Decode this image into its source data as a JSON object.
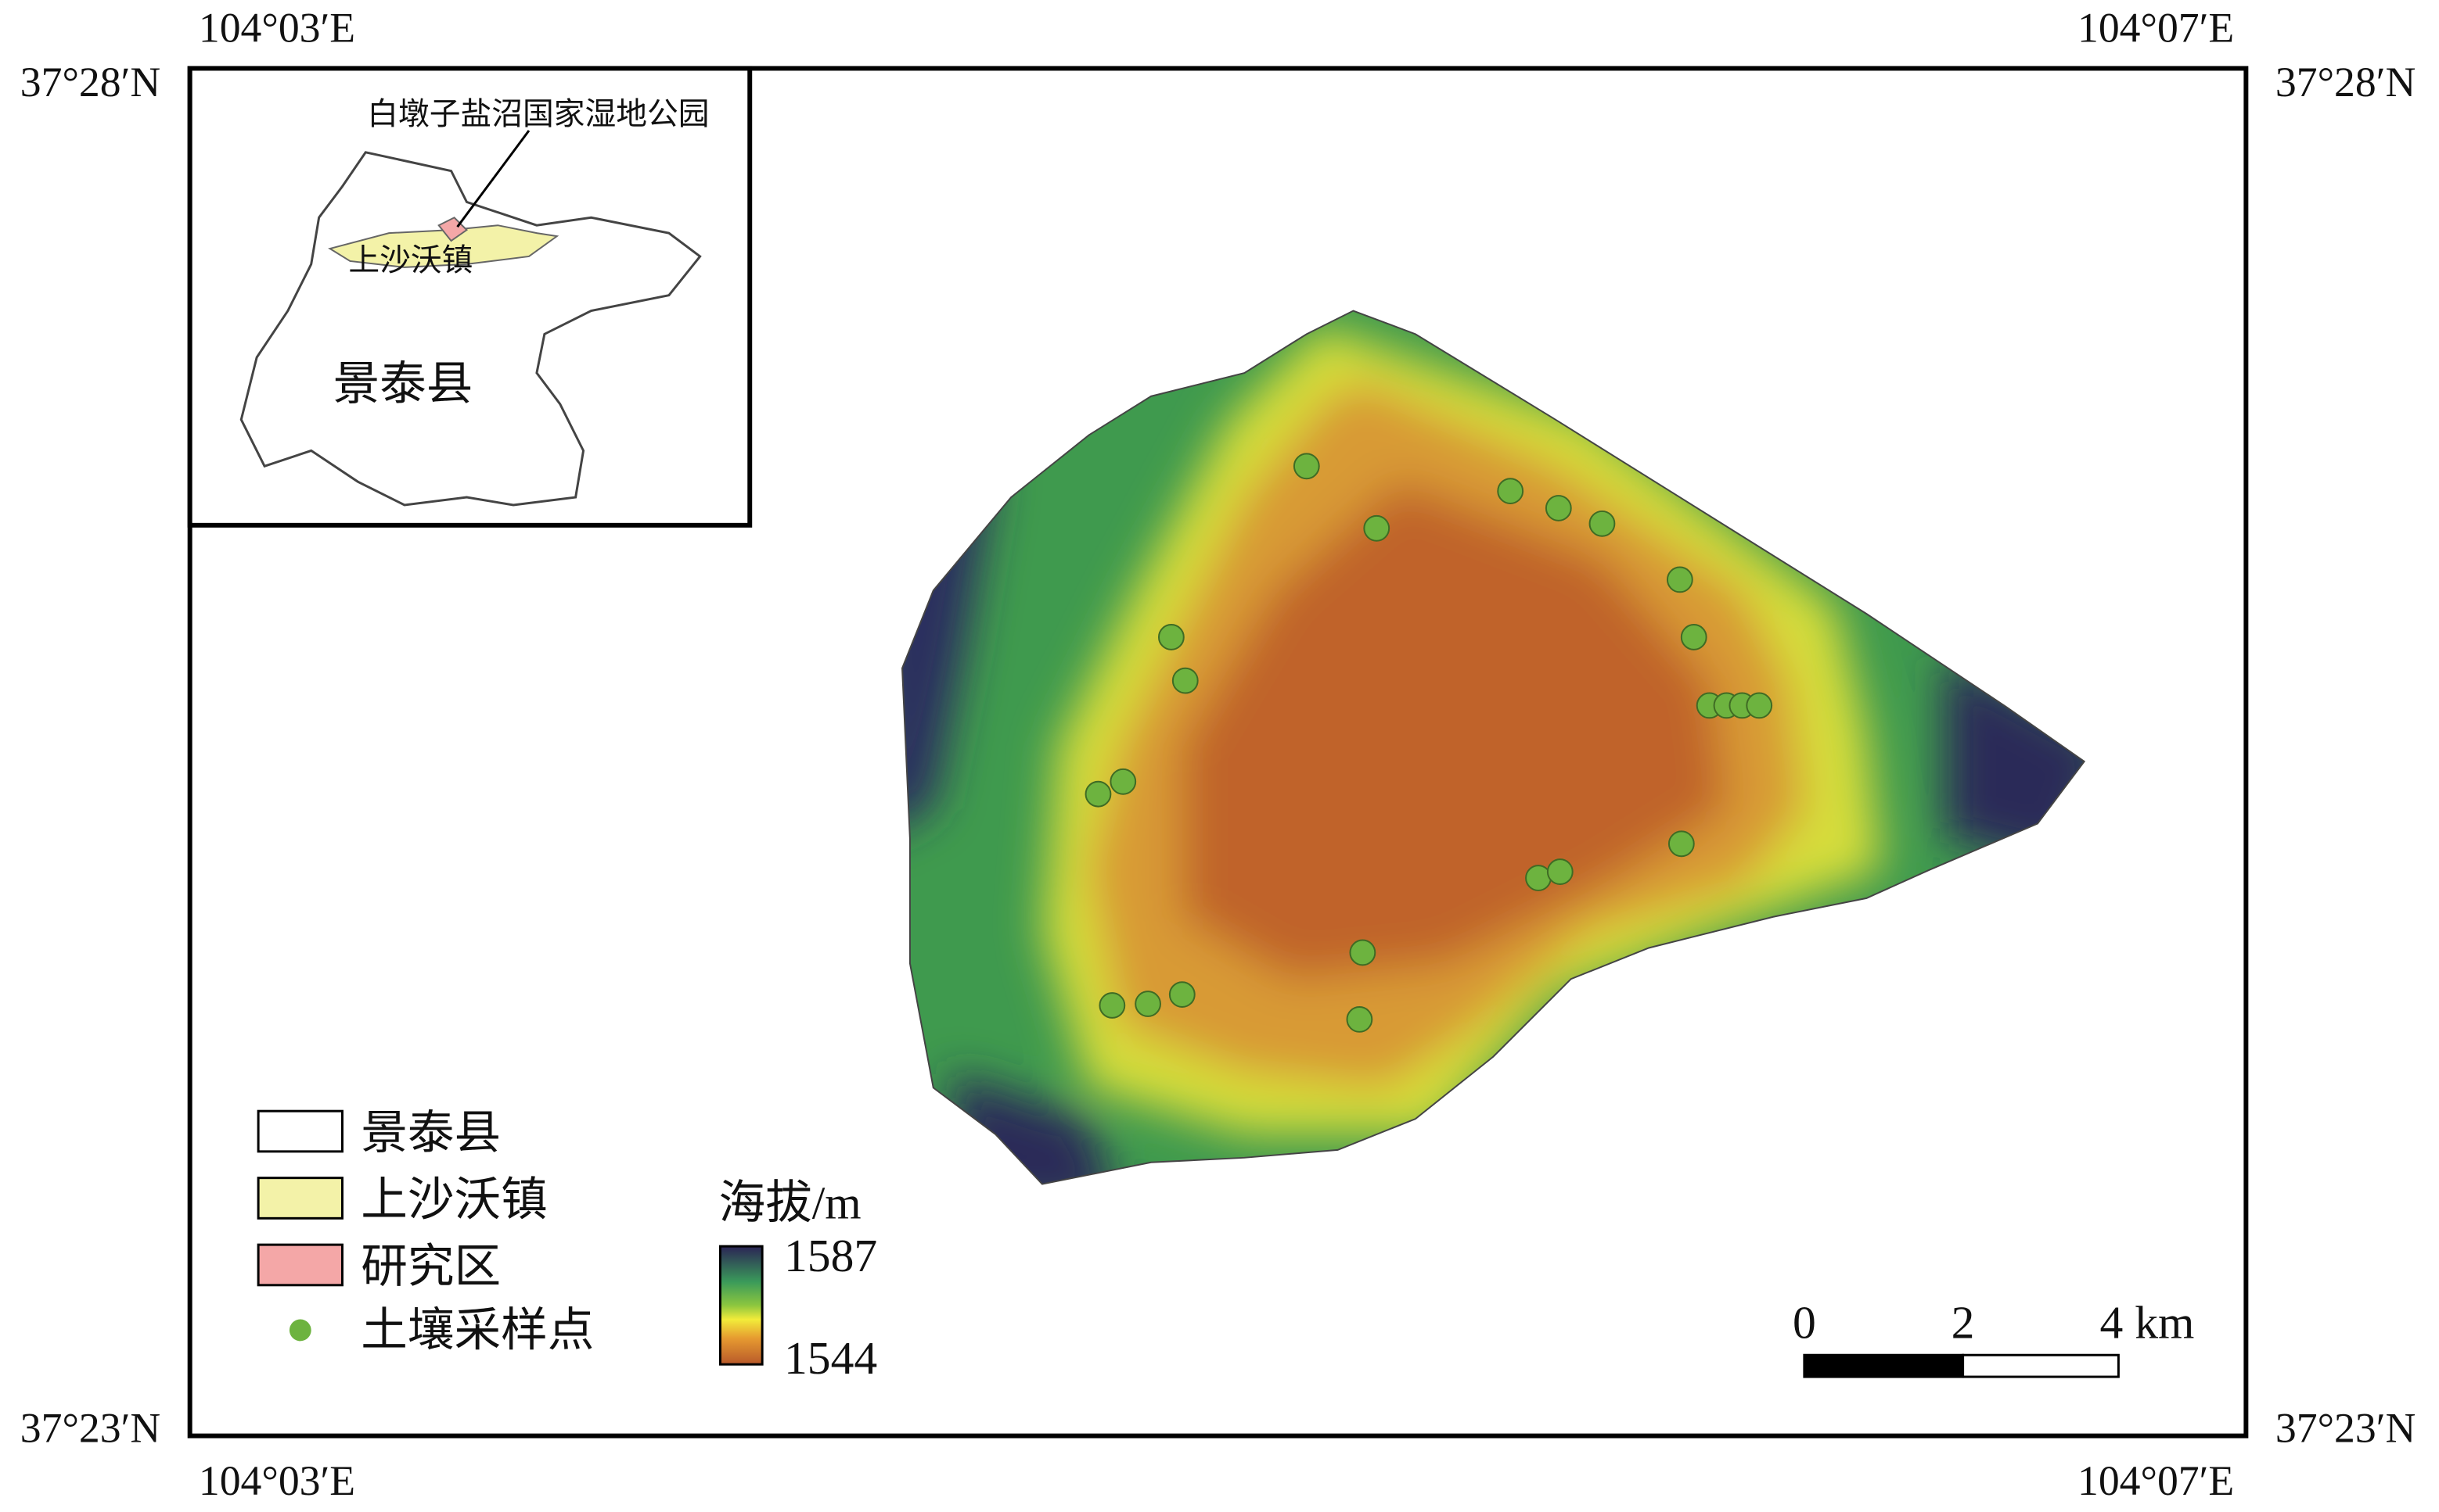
{
  "map": {
    "coords": {
      "top_left_lon": "104°03′E",
      "top_right_lon": "104°07′E",
      "bottom_left_lon": "104°03′E",
      "bottom_right_lon": "104°07′E",
      "left_top_lat": "37°28′N",
      "right_top_lat": "37°28′N",
      "left_bottom_lat": "37°23′N",
      "right_bottom_lat": "37°23′N"
    },
    "inset": {
      "park": "白墩子盐沼国家湿地公园",
      "town": "上沙沃镇",
      "county": "景泰县"
    },
    "legend": [
      "景泰县",
      "上沙沃镇",
      "研究区",
      "土壤采样点"
    ],
    "elevation": {
      "title": "海拔/m",
      "max": 1587,
      "min": 1544
    },
    "scale_bar": [
      "0",
      "2",
      "4 km"
    ]
  }
}
